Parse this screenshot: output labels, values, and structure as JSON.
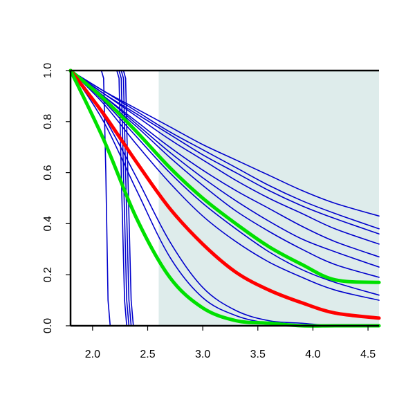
{
  "chart_data": {
    "type": "line",
    "title": "",
    "xlabel": "",
    "ylabel": "",
    "xlim": [
      1.8,
      4.6
    ],
    "ylim": [
      0.0,
      1.0
    ],
    "x_ticks": [
      "2.0",
      "2.5",
      "3.0",
      "3.5",
      "4.0",
      "4.5"
    ],
    "x_tick_values": [
      2.0,
      2.5,
      3.0,
      3.5,
      4.0,
      4.5
    ],
    "y_ticks": [
      "0.0",
      "0.2",
      "0.4",
      "0.6",
      "0.8",
      "1.0"
    ],
    "y_tick_values": [
      0.0,
      0.2,
      0.4,
      0.6,
      0.8,
      1.0
    ],
    "shaded_region": {
      "x_from": 2.6,
      "x_to": 4.6,
      "color": "#deeceb"
    },
    "x": [
      1.8,
      2.1,
      2.4,
      2.7,
      3.0,
      3.3,
      3.6,
      3.9,
      4.2,
      4.6
    ],
    "series": [
      {
        "color": "#0000cc",
        "width": "thin",
        "values": [
          1.0,
          0.92,
          0.85,
          0.78,
          0.71,
          0.65,
          0.59,
          0.53,
          0.48,
          0.43
        ]
      },
      {
        "color": "#0000cc",
        "width": "thin",
        "values": [
          1.0,
          0.92,
          0.84,
          0.76,
          0.69,
          0.62,
          0.55,
          0.49,
          0.44,
          0.38
        ]
      },
      {
        "color": "#0000cc",
        "width": "thin",
        "values": [
          1.0,
          0.91,
          0.83,
          0.75,
          0.67,
          0.6,
          0.53,
          0.47,
          0.42,
          0.36
        ]
      },
      {
        "color": "#0000cc",
        "width": "thin",
        "values": [
          1.0,
          0.91,
          0.82,
          0.73,
          0.65,
          0.57,
          0.5,
          0.44,
          0.38,
          0.32
        ]
      },
      {
        "color": "#0000cc",
        "width": "thin",
        "values": [
          1.0,
          0.9,
          0.8,
          0.7,
          0.61,
          0.53,
          0.46,
          0.39,
          0.33,
          0.27
        ]
      },
      {
        "color": "#0000cc",
        "width": "thin",
        "values": [
          1.0,
          0.9,
          0.79,
          0.68,
          0.58,
          0.49,
          0.41,
          0.34,
          0.29,
          0.23
        ]
      },
      {
        "color": "#0000cc",
        "width": "thin",
        "values": [
          1.0,
          0.89,
          0.78,
          0.66,
          0.55,
          0.45,
          0.37,
          0.3,
          0.24,
          0.19
        ]
      },
      {
        "color": "#0000cc",
        "width": "thin",
        "values": [
          1.0,
          0.88,
          0.74,
          0.6,
          0.48,
          0.38,
          0.29,
          0.22,
          0.17,
          0.12
        ]
      },
      {
        "color": "#0000cc",
        "width": "thin",
        "values": [
          1.0,
          0.87,
          0.71,
          0.56,
          0.43,
          0.33,
          0.25,
          0.19,
          0.14,
          0.1
        ]
      },
      {
        "color": "#0000cc",
        "width": "thin",
        "values": [
          1.0,
          0.82,
          0.58,
          0.33,
          0.15,
          0.06,
          0.02,
          0.01,
          0.0,
          0.0
        ]
      },
      {
        "color": "#0000cc",
        "width": "thin",
        "values": [
          1.0,
          0.8,
          0.53,
          0.27,
          0.11,
          0.04,
          0.01,
          0.0,
          0.0,
          0.0
        ]
      },
      {
        "color": "#00e000",
        "width": "thick",
        "values": [
          1.0,
          0.89,
          0.76,
          0.62,
          0.5,
          0.4,
          0.31,
          0.24,
          0.18,
          0.17
        ]
      },
      {
        "color": "#ff0000",
        "width": "thick",
        "values": [
          1.0,
          0.83,
          0.64,
          0.46,
          0.32,
          0.21,
          0.14,
          0.09,
          0.05,
          0.03
        ]
      },
      {
        "color": "#00e000",
        "width": "thick",
        "values": [
          1.0,
          0.73,
          0.42,
          0.19,
          0.07,
          0.02,
          0.01,
          0.0,
          0.0,
          0.0
        ]
      }
    ],
    "step_series": [
      {
        "color": "#0000cc",
        "x": [
          1.8,
          2.08,
          2.1,
          2.12,
          2.14,
          2.16,
          4.6
        ],
        "values": [
          1.0,
          1.0,
          0.97,
          0.6,
          0.1,
          0.0,
          0.0
        ]
      },
      {
        "color": "#0000cc",
        "x": [
          1.8,
          2.22,
          2.24,
          2.26,
          2.29,
          2.31,
          4.6
        ],
        "values": [
          1.0,
          1.0,
          0.97,
          0.6,
          0.1,
          0.0,
          0.0
        ]
      },
      {
        "color": "#0000cc",
        "x": [
          1.8,
          2.24,
          2.26,
          2.28,
          2.31,
          2.33,
          4.6
        ],
        "values": [
          1.0,
          1.0,
          0.97,
          0.6,
          0.1,
          0.0,
          0.0
        ]
      },
      {
        "color": "#0000cc",
        "x": [
          1.8,
          2.26,
          2.28,
          2.3,
          2.33,
          2.35,
          4.6
        ],
        "values": [
          1.0,
          1.0,
          0.97,
          0.6,
          0.1,
          0.0,
          0.0
        ]
      },
      {
        "color": "#0000cc",
        "x": [
          1.8,
          2.28,
          2.3,
          2.32,
          2.35,
          2.37,
          4.6
        ],
        "values": [
          1.0,
          1.0,
          0.97,
          0.6,
          0.1,
          0.0,
          0.0
        ]
      }
    ],
    "grid": false,
    "legend": "none"
  }
}
